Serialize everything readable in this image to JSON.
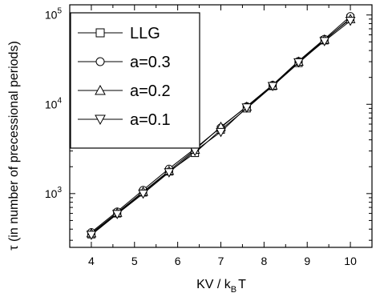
{
  "chart_data": {
    "type": "line",
    "xlabel": "KV / k",
    "xlabel_sub": "B",
    "xlabel_end": "T",
    "ylabel": "τ (in number of precessional periods)",
    "y_scale": "log",
    "xlim": [
      3.5,
      10.5
    ],
    "ylim": [
      250,
      130000
    ],
    "x_ticks": [
      4,
      5,
      6,
      7,
      8,
      9,
      10
    ],
    "x_tick_labels": [
      "4",
      "5",
      "6",
      "7",
      "8",
      "9",
      "10"
    ],
    "y_ticks": [
      1000,
      10000,
      100000
    ],
    "y_tick_labels": [
      {
        "base": "10",
        "exp": "3"
      },
      {
        "base": "10",
        "exp": "4"
      },
      {
        "base": "10",
        "exp": "5"
      }
    ],
    "grid": false,
    "legend_position": "top-left",
    "x": [
      4.0,
      4.6,
      5.2,
      5.8,
      6.4,
      7.0,
      7.6,
      8.2,
      8.8,
      9.4,
      10.0
    ],
    "series": [
      {
        "name": "LLG",
        "marker": "square",
        "values": [
          350,
          600,
          1030,
          1770,
          2850,
          5200,
          9000,
          16000,
          29000,
          52000,
          92000
        ]
      },
      {
        "name": "a=0.3",
        "marker": "circle",
        "values": [
          370,
          630,
          1100,
          1900,
          3200,
          5500,
          9500,
          16500,
          30500,
          54000,
          97000
        ]
      },
      {
        "name": "a=0.2",
        "marker": "triangle-up",
        "values": [
          360,
          610,
          1050,
          1800,
          3100,
          5600,
          9400,
          16200,
          30000,
          53000,
          90000
        ]
      },
      {
        "name": "a=0.1",
        "marker": "triangle-down",
        "values": [
          345,
          590,
          1000,
          1730,
          3000,
          4900,
          9200,
          16000,
          29500,
          51000,
          86000
        ]
      }
    ]
  }
}
